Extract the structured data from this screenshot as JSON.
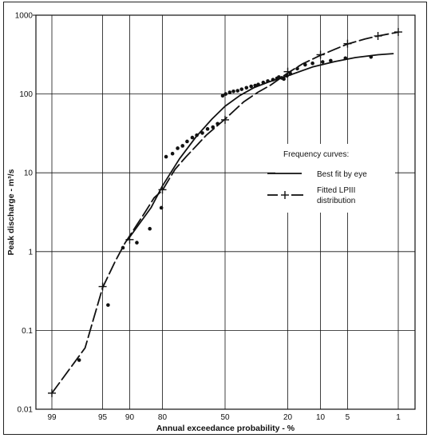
{
  "chart_data": {
    "type": "line",
    "xlabel": "Annual exceedance probability - %",
    "ylabel": "Peak discharge - m³/s",
    "y_scale": "log",
    "x_scale": "normal-probability",
    "xlim": [
      99,
      1
    ],
    "ylim": [
      0.01,
      1000
    ],
    "grid": true,
    "x_ticks": [
      "99",
      "95",
      "90",
      "80",
      "50",
      "20",
      "10",
      "5",
      "1"
    ],
    "y_ticks": [
      "0.01",
      "0.1",
      "1",
      "10",
      "100",
      "1000"
    ],
    "legend": {
      "title": "Frequency curves:",
      "placement": "right-middle",
      "entries": [
        {
          "label_lines": [
            "Best fit by eye"
          ],
          "style": "solid"
        },
        {
          "label_lines": [
            "Fitted LPIII",
            "distribution"
          ],
          "style": "dashed-cross"
        }
      ]
    },
    "series": [
      {
        "style": "scatter",
        "x": [
          97.5,
          94.2,
          91.5,
          88.2,
          84.4,
          80.4,
          78.6,
          76.0,
          73.8,
          71.6,
          69.5,
          67.0,
          64.8,
          62.0,
          59.3,
          56.5,
          54.0,
          51.3,
          49.7,
          47.5,
          45.5,
          43.3,
          41.2,
          38.7,
          36.3,
          34.3,
          32.8,
          30.4,
          28.3,
          26.0,
          24.3,
          23.5,
          22.3,
          21.5,
          20.3,
          19.0,
          16.6,
          14.1,
          12.0,
          9.5,
          7.8,
          5.3,
          2.5
        ],
        "y": [
          0.042,
          0.21,
          1.12,
          1.3,
          1.95,
          3.6,
          16,
          17.5,
          20.5,
          22,
          25,
          28,
          30,
          32,
          36,
          38,
          42,
          95,
          100,
          105,
          108,
          110,
          115,
          120,
          125,
          128,
          132,
          140,
          146,
          152,
          158,
          164,
          160,
          155,
          170,
          180,
          210,
          235,
          245,
          255,
          265,
          285,
          295
        ]
      },
      {
        "style": "solid",
        "x": [
          90.5,
          84,
          80,
          73,
          65,
          57,
          50,
          42,
          35,
          28,
          20,
          12,
          7,
          4,
          2,
          1.2
        ],
        "y": [
          1.4,
          3.6,
          6.8,
          15,
          29,
          48,
          70,
          96,
          120,
          142,
          170,
          220,
          258,
          290,
          315,
          325
        ]
      },
      {
        "style": "dashed-cross",
        "x": [
          99,
          97,
          95,
          93,
          91,
          89,
          86,
          83,
          80,
          75,
          70,
          65,
          60,
          55,
          50,
          45,
          40,
          33,
          27,
          20,
          15,
          10,
          7,
          5,
          3,
          2,
          1
        ],
        "y": [
          0.016,
          0.06,
          0.35,
          0.75,
          1.3,
          1.9,
          3.1,
          4.8,
          6,
          11,
          16,
          22,
          30,
          38,
          48,
          62,
          80,
          105,
          130,
          185,
          240,
          310,
          370,
          430,
          500,
          545,
          610
        ]
      }
    ],
    "markers_lpiii": {
      "x": [
        99,
        95,
        90,
        80,
        50,
        20,
        10,
        5,
        2,
        1
      ],
      "y": [
        0.016,
        0.36,
        1.42,
        6.1,
        47,
        192,
        315,
        435,
        545,
        612
      ]
    }
  }
}
